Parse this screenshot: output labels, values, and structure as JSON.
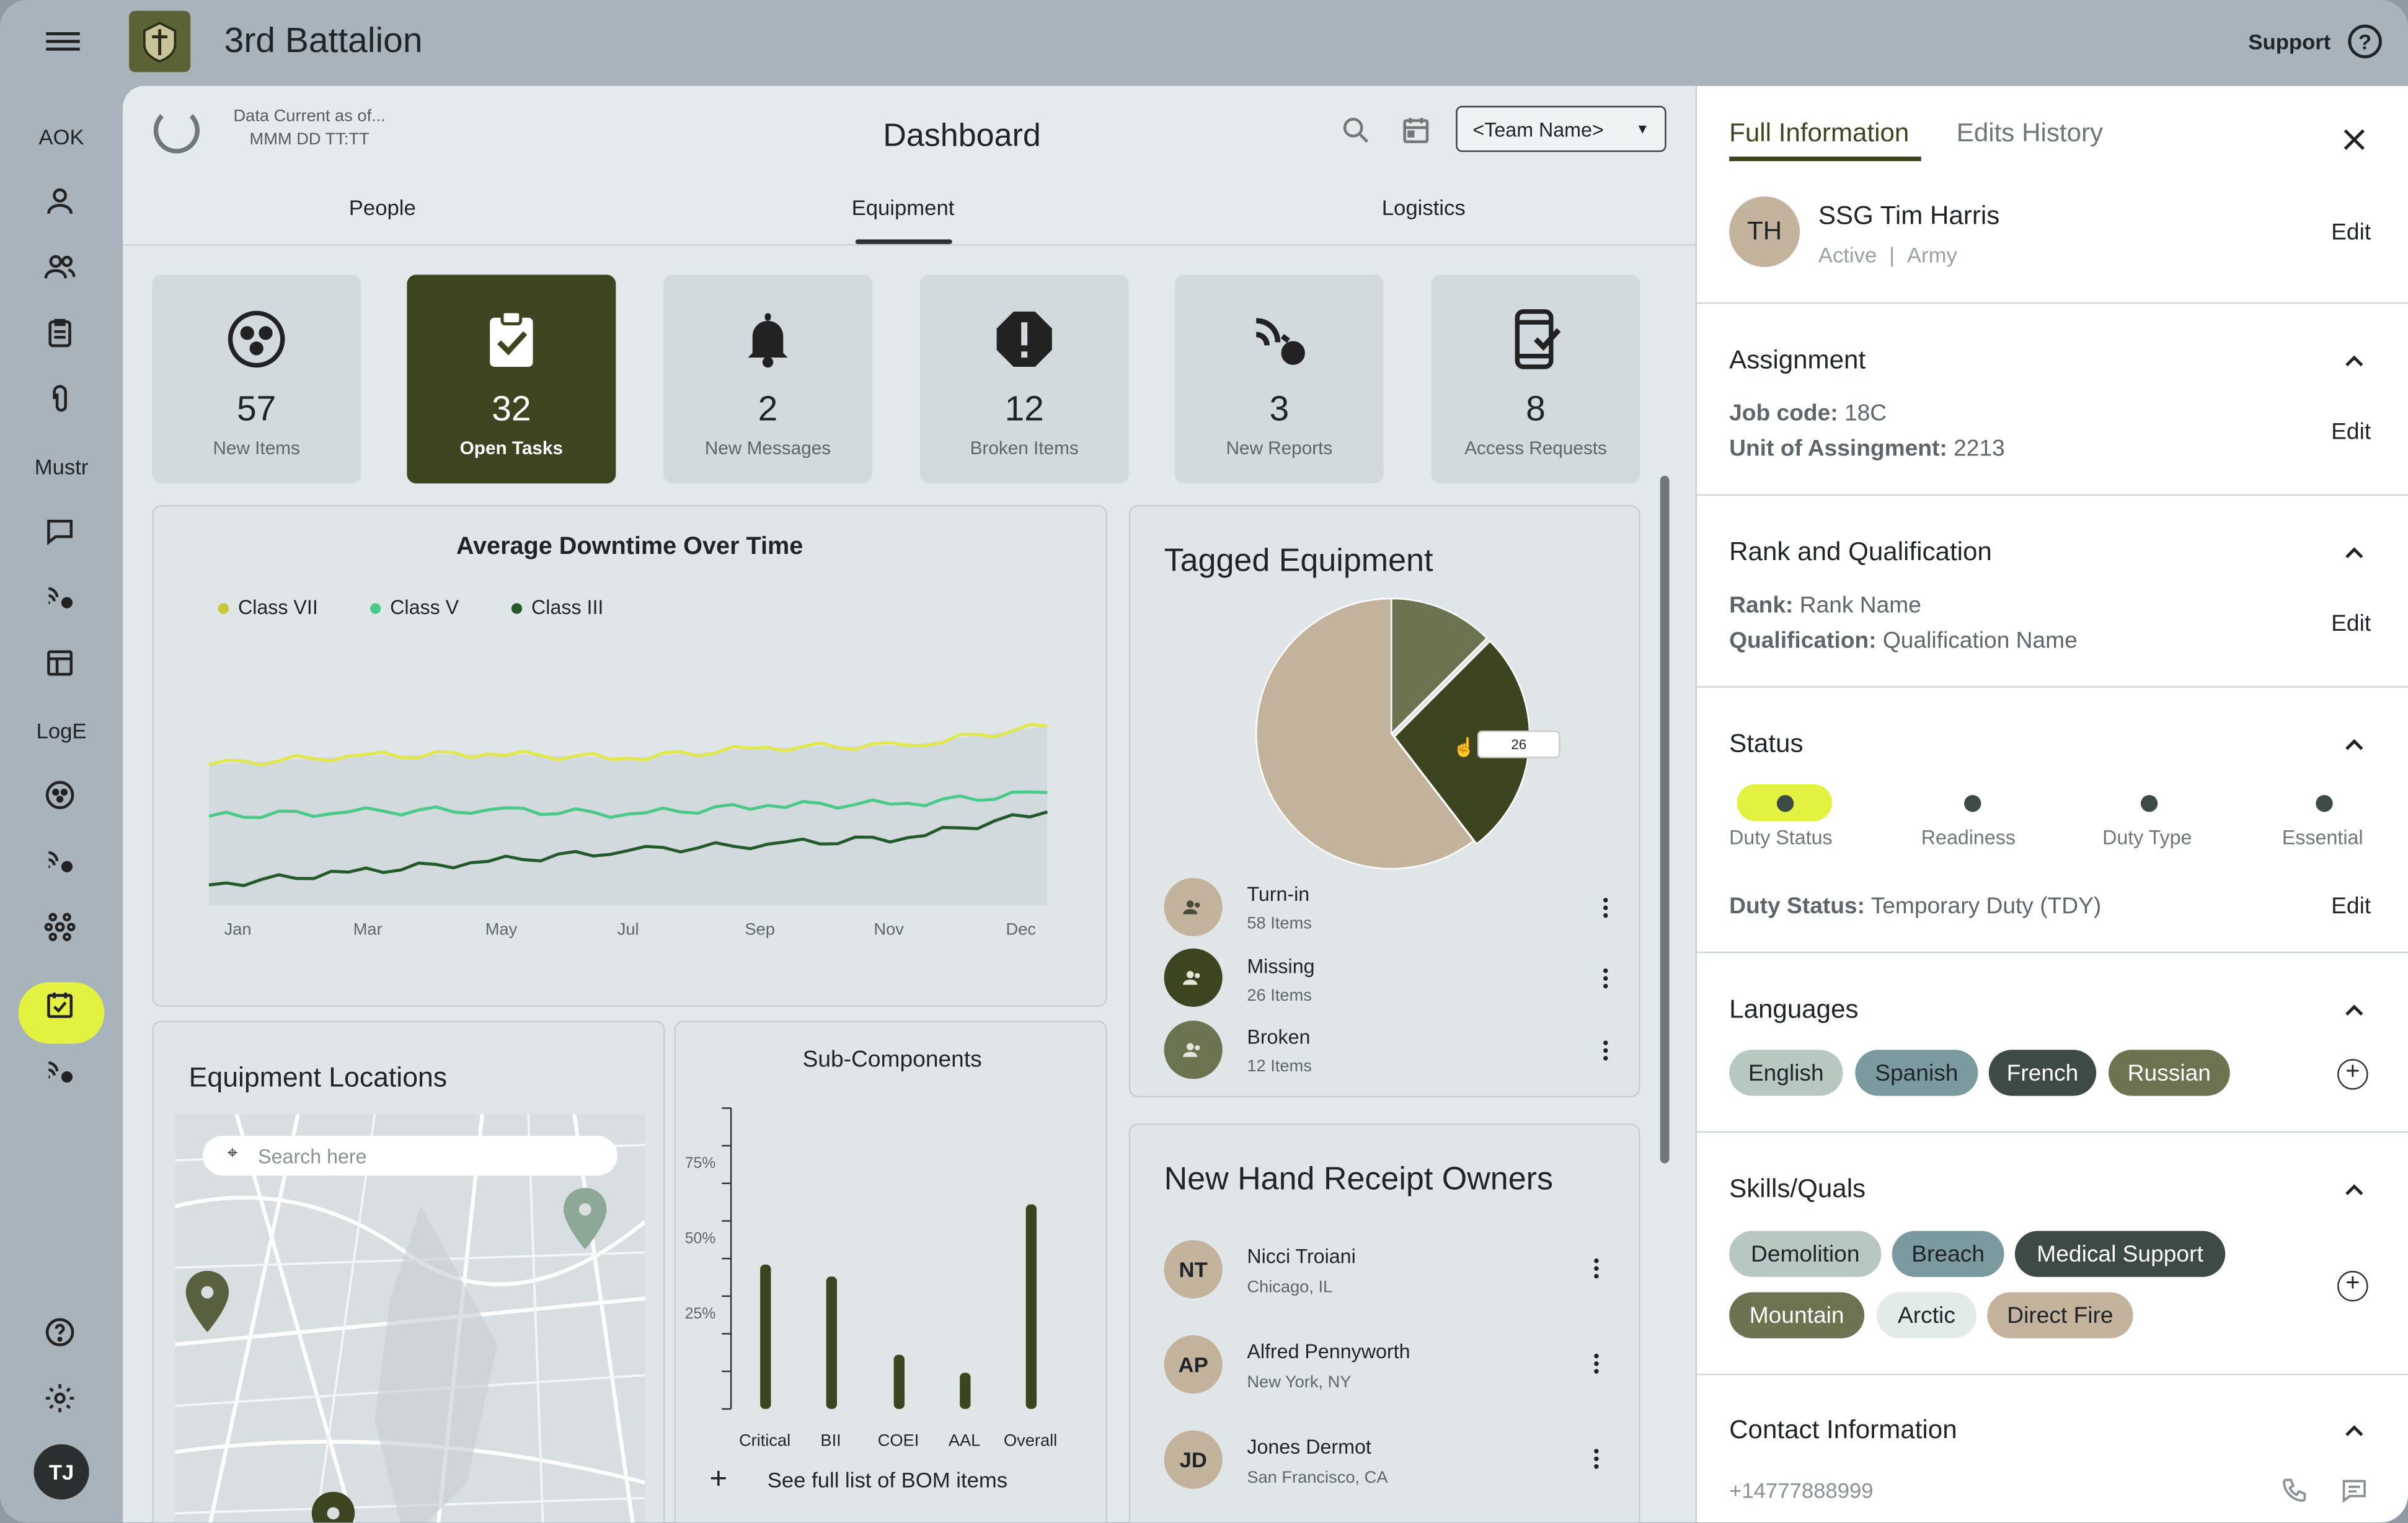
{
  "app": {
    "title": "3rd Battalion",
    "support_label": "Support"
  },
  "sidebar": {
    "sections": [
      "AOK",
      "Mustr",
      "LogE"
    ],
    "user_initials": "TJ"
  },
  "header": {
    "data_current_line1": "Data Current as of...",
    "data_current_line2": "MMM DD TT:TT",
    "title": "Dashboard",
    "team_select": "<Team Name>"
  },
  "tabs": [
    "People",
    "Equipment",
    "Logistics"
  ],
  "kpis": [
    {
      "value": "57",
      "label": "New Items"
    },
    {
      "value": "32",
      "label": "Open Tasks"
    },
    {
      "value": "2",
      "label": "New Messages"
    },
    {
      "value": "12",
      "label": "Broken Items"
    },
    {
      "value": "3",
      "label": "New Reports"
    },
    {
      "value": "8",
      "label": "Access Requests"
    }
  ],
  "downtime": {
    "title": "Average Downtime Over Time",
    "legend": [
      "Class VII",
      "Class V",
      "Class III"
    ],
    "months": [
      "Jan",
      "Mar",
      "May",
      "Jul",
      "Sep",
      "Nov",
      "Dec"
    ]
  },
  "tagged": {
    "title": "Tagged Equipment",
    "tooltip": "26",
    "items": [
      {
        "label": "Turn-in",
        "sub": "58 Items"
      },
      {
        "label": "Missing",
        "sub": "26 Items"
      },
      {
        "label": "Broken",
        "sub": "12 Items"
      }
    ]
  },
  "locations": {
    "title": "Equipment Locations",
    "search_placeholder": "Search here"
  },
  "subcomponents": {
    "title": "Sub-Components",
    "yticks": [
      "75%",
      "50%",
      "25%"
    ],
    "categories": [
      "Critical",
      "BII",
      "COEI",
      "AAL",
      "Overall"
    ],
    "link": "See full list of BOM items"
  },
  "receipt": {
    "title": "New Hand Receipt Owners",
    "people": [
      {
        "initials": "NT",
        "name": "Nicci Troiani",
        "place": "Chicago, IL"
      },
      {
        "initials": "AP",
        "name": "Alfred Pennyworth",
        "place": "New York, NY"
      },
      {
        "initials": "JD",
        "name": "Jones Dermot",
        "place": "San Francisco, CA"
      }
    ]
  },
  "detail": {
    "tab_full": "Full Information",
    "tab_history": "Edits History",
    "initials": "TH",
    "name": "SSG Tim Harris",
    "status": "Active",
    "branch": "Army",
    "edit": "Edit",
    "assignment": {
      "title": "Assignment",
      "job_label": "Job code:",
      "job": "18C",
      "unit_label": "Unit of Assingment:",
      "unit": "2213"
    },
    "rank": {
      "title": "Rank and Qualification",
      "rank_label": "Rank:",
      "rank": "Rank Name",
      "qual_label": "Qualification:",
      "qual": "Qualification Name"
    },
    "status_sec": {
      "title": "Status",
      "labels": [
        "Duty Status",
        "Readiness",
        "Duty Type",
        "Essential"
      ],
      "duty_label": "Duty Status:",
      "duty": "Temporary Duty (TDY)"
    },
    "languages": {
      "title": "Languages",
      "items": [
        "English",
        "Spanish",
        "French",
        "Russian"
      ]
    },
    "skills": {
      "title": "Skills/Quals",
      "items": [
        "Demolition",
        "Breach",
        "Medical Support",
        "Mountain",
        "Arctic",
        "Direct Fire"
      ]
    },
    "contact": {
      "title": "Contact Information",
      "phone": "+14777888999"
    }
  },
  "chart_data": [
    {
      "type": "line",
      "title": "Average Downtime Over Time",
      "x": [
        "Jan",
        "Mar",
        "May",
        "Jul",
        "Sep",
        "Nov",
        "Dec"
      ],
      "series": [
        {
          "name": "Class VII",
          "values": [
            0.62,
            0.66,
            0.67,
            0.65,
            0.7,
            0.71,
            0.8
          ]
        },
        {
          "name": "Class V",
          "values": [
            0.38,
            0.4,
            0.41,
            0.39,
            0.43,
            0.44,
            0.49
          ]
        },
        {
          "name": "Class III",
          "values": [
            0.06,
            0.12,
            0.17,
            0.22,
            0.25,
            0.28,
            0.4
          ]
        }
      ],
      "grid": false,
      "legend": "top-left"
    },
    {
      "type": "pie",
      "title": "Tagged Equipment",
      "labels": [
        "Turn-in",
        "Missing",
        "Broken"
      ],
      "values": [
        58,
        26,
        12
      ],
      "colors": [
        "#c4b39c",
        "#3d4520",
        "#6b7350"
      ]
    },
    {
      "type": "bar",
      "title": "Sub-Components",
      "categories": [
        "Critical",
        "BII",
        "COEI",
        "AAL",
        "Overall"
      ],
      "values": [
        48,
        44,
        18,
        12,
        68
      ],
      "ylim": [
        0,
        100
      ],
      "color": "#3d4520"
    }
  ]
}
